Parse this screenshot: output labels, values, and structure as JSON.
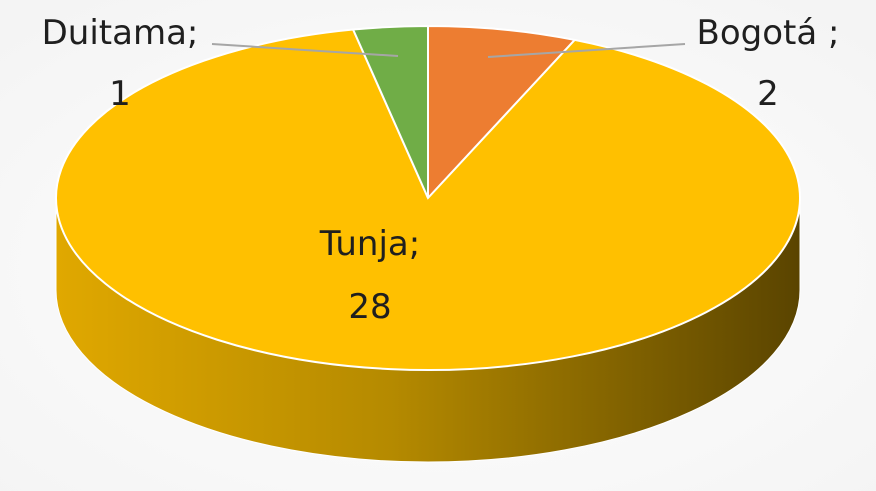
{
  "chart_data": {
    "type": "pie",
    "style": "3d",
    "categories": [
      "Bogotá",
      "Tunja",
      "Duitama"
    ],
    "values": [
      2,
      28,
      1
    ],
    "data_labels": [
      {
        "name": "Bogotá ;",
        "value": "2"
      },
      {
        "name": "Tunja;",
        "value": "28"
      },
      {
        "name": "Duitama;",
        "value": "1"
      }
    ],
    "colors": [
      "#ED7D31",
      "#FFC000",
      "#70AD47"
    ],
    "side_color": "#B58A00",
    "background_color": "#FFFFFF"
  }
}
